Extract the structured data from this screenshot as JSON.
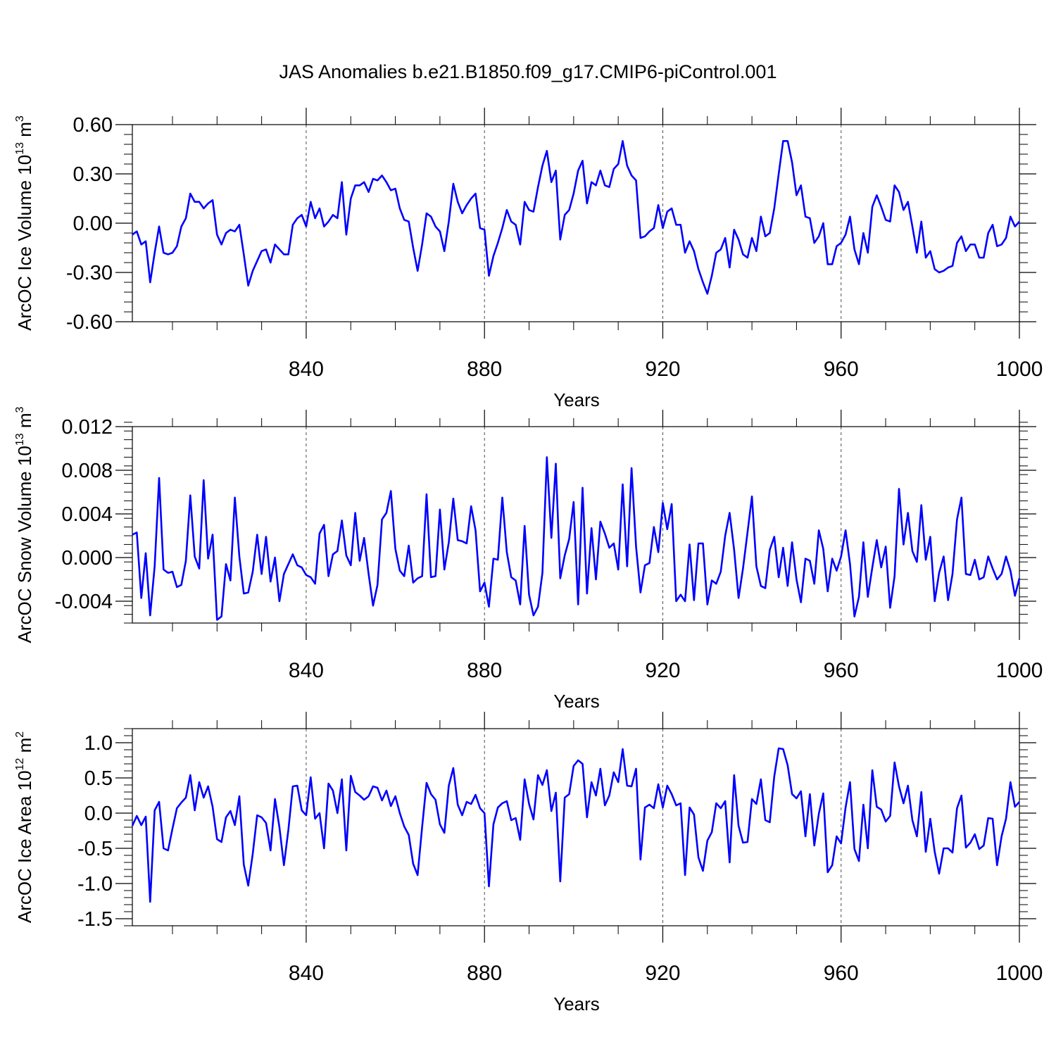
{
  "title": "JAS Anomalies b.e21.B1850.f09_g17.CMIP6-piControl.001",
  "colors": {
    "series": "#0000ff",
    "axes": "#000000",
    "grid": "#000000",
    "background": "#ffffff"
  },
  "chart_data": [
    {
      "type": "line",
      "ylabel_prefix": "ArcOC Ice Volume 10",
      "ylabel_sup1": "13",
      "ylabel_mid": " m",
      "ylabel_sup2": "3",
      "xlabel": "Years",
      "xlim": [
        801,
        1000
      ],
      "ylim": [
        -0.6,
        0.6
      ],
      "yticks": [
        -0.6,
        -0.3,
        0.0,
        0.3,
        0.6
      ],
      "ytick_labels": [
        "-0.60",
        "-0.30",
        "0.00",
        "0.30",
        "0.60"
      ],
      "yminor_step": 0.06,
      "xticks": [
        840,
        880,
        920,
        960,
        1000
      ],
      "xtick_labels": [
        "840",
        "880",
        "920",
        "960",
        "1000"
      ],
      "xminor": [
        810,
        820,
        830,
        850,
        860,
        870,
        890,
        900,
        910,
        930,
        940,
        950,
        970,
        980,
        990
      ],
      "x_start": 801,
      "values": [
        -0.07,
        -0.05,
        -0.13,
        -0.11,
        -0.36,
        -0.18,
        -0.02,
        -0.18,
        -0.19,
        -0.18,
        -0.14,
        -0.02,
        0.03,
        0.18,
        0.13,
        0.13,
        0.09,
        0.12,
        0.14,
        -0.07,
        -0.13,
        -0.06,
        -0.04,
        -0.05,
        -0.01,
        -0.19,
        -0.38,
        -0.29,
        -0.23,
        -0.17,
        -0.16,
        -0.24,
        -0.13,
        -0.16,
        -0.19,
        -0.19,
        -0.01,
        0.03,
        0.05,
        -0.02,
        0.13,
        0.03,
        0.09,
        -0.02,
        0.01,
        0.05,
        0.03,
        0.25,
        -0.07,
        0.15,
        0.23,
        0.23,
        0.25,
        0.19,
        0.27,
        0.26,
        0.29,
        0.25,
        0.2,
        0.21,
        0.09,
        0.02,
        0.01,
        -0.15,
        -0.29,
        -0.13,
        0.06,
        0.04,
        -0.02,
        -0.05,
        -0.17,
        0.01,
        0.24,
        0.13,
        0.06,
        0.11,
        0.15,
        0.18,
        -0.03,
        -0.04,
        -0.32,
        -0.2,
        -0.12,
        -0.03,
        0.08,
        0.01,
        -0.01,
        -0.13,
        0.13,
        0.08,
        0.07,
        0.22,
        0.35,
        0.44,
        0.25,
        0.32,
        -0.1,
        0.05,
        0.08,
        0.18,
        0.32,
        0.38,
        0.12,
        0.25,
        0.23,
        0.32,
        0.23,
        0.22,
        0.33,
        0.36,
        0.5,
        0.35,
        0.29,
        0.26,
        -0.09,
        -0.08,
        -0.05,
        -0.03,
        0.11,
        -0.03,
        0.07,
        0.09,
        -0.01,
        -0.01,
        -0.18,
        -0.11,
        -0.17,
        -0.28,
        -0.36,
        -0.43,
        -0.32,
        -0.18,
        -0.16,
        -0.09,
        -0.27,
        -0.04,
        -0.1,
        -0.19,
        -0.21,
        -0.09,
        -0.17,
        0.04,
        -0.08,
        -0.06,
        0.09,
        0.3,
        0.5,
        0.5,
        0.37,
        0.17,
        0.23,
        0.04,
        0.03,
        -0.12,
        -0.08,
        0.0,
        -0.25,
        -0.25,
        -0.14,
        -0.12,
        -0.07,
        0.04,
        -0.16,
        -0.25,
        -0.06,
        -0.18,
        0.1,
        0.17,
        0.1,
        0.02,
        0.01,
        0.23,
        0.19,
        0.08,
        0.13,
        -0.02,
        -0.18,
        0.01,
        -0.21,
        -0.17,
        -0.28,
        -0.3,
        -0.29,
        -0.27,
        -0.26,
        -0.12,
        -0.08,
        -0.17,
        -0.13,
        -0.13,
        -0.21,
        -0.21,
        -0.06,
        -0.01,
        -0.14,
        -0.13,
        -0.09,
        0.04,
        -0.02,
        0.01
      ]
    },
    {
      "type": "line",
      "ylabel_prefix": "ArcOC Snow Volume 10",
      "ylabel_sup1": "13",
      "ylabel_mid": " m",
      "ylabel_sup2": "3",
      "xlabel": "Years",
      "xlim": [
        801,
        1000
      ],
      "ylim": [
        -0.006,
        0.012
      ],
      "yticks": [
        -0.004,
        0.0,
        0.004,
        0.008,
        0.012
      ],
      "ytick_labels": [
        "-0.004",
        "0.000",
        "0.004",
        "0.008",
        "0.012"
      ],
      "yminor_step": 0.0008,
      "xticks": [
        840,
        880,
        920,
        960,
        1000
      ],
      "xtick_labels": [
        "840",
        "880",
        "920",
        "960",
        "1000"
      ],
      "xminor": [
        810,
        820,
        830,
        850,
        860,
        870,
        890,
        900,
        910,
        930,
        940,
        950,
        970,
        980,
        990
      ],
      "x_start": 801,
      "values": [
        0.0021,
        0.0023,
        -0.0037,
        0.0004,
        -0.0053,
        -0.0008,
        0.0073,
        -0.0011,
        -0.0014,
        -0.0013,
        -0.0027,
        -0.0025,
        -0.0003,
        0.0057,
        0.0001,
        -0.001,
        0.0071,
        -0.0001,
        0.0021,
        -0.0057,
        -0.0054,
        -0.0006,
        -0.0021,
        0.0055,
        0.0001,
        -0.0033,
        -0.0032,
        -0.0013,
        0.0021,
        -0.0015,
        0.0019,
        -0.0022,
        0.0,
        -0.004,
        -0.0015,
        -0.0006,
        0.0003,
        -0.0007,
        -0.0009,
        -0.0016,
        -0.0018,
        -0.0024,
        0.0022,
        0.003,
        -0.0017,
        0.0003,
        0.0006,
        0.0034,
        0.0002,
        -0.0007,
        0.0041,
        -0.0003,
        0.0018,
        -0.0015,
        -0.0044,
        -0.0025,
        0.0035,
        0.0041,
        0.0061,
        0.0008,
        -0.0012,
        -0.0017,
        0.0011,
        -0.0023,
        -0.0019,
        -0.0017,
        0.0058,
        -0.0018,
        -0.0017,
        0.0044,
        -0.0011,
        0.0014,
        0.0054,
        0.0016,
        0.0015,
        0.0013,
        0.0047,
        0.0025,
        -0.0031,
        -0.0023,
        -0.0045,
        -0.0001,
        -0.0002,
        0.0055,
        0.0005,
        -0.0018,
        -0.0021,
        -0.0043,
        0.0029,
        -0.0034,
        -0.0053,
        -0.0045,
        -0.0014,
        0.0092,
        0.0018,
        0.0086,
        -0.0019,
        0.0002,
        0.0017,
        0.0051,
        -0.0043,
        0.0064,
        -0.0033,
        0.0027,
        -0.002,
        0.0033,
        0.0022,
        0.0009,
        0.0013,
        -0.0011,
        0.0067,
        -0.0008,
        0.0082,
        0.001,
        -0.0032,
        -0.0007,
        -0.0005,
        0.0028,
        0.0005,
        0.005,
        0.0026,
        0.0049,
        -0.004,
        -0.0034,
        -0.004,
        0.0012,
        -0.0039,
        0.0013,
        0.0013,
        -0.0043,
        -0.0021,
        -0.0024,
        -0.0013,
        0.002,
        0.0041,
        0.0007,
        -0.0037,
        -0.001,
        0.0023,
        0.0056,
        -0.0008,
        -0.0026,
        -0.0028,
        0.0007,
        0.0019,
        -0.0018,
        0.0009,
        -0.0026,
        0.0014,
        -0.002,
        -0.0041,
        -0.0001,
        -0.0003,
        -0.0024,
        0.0025,
        0.0008,
        -0.0031,
        -0.0001,
        -0.0012,
        0.0001,
        0.0025,
        -0.0006,
        -0.0054,
        -0.0036,
        0.0014,
        -0.0036,
        -0.0009,
        0.0016,
        -0.0009,
        0.001,
        -0.0046,
        -0.0017,
        0.0063,
        0.0012,
        0.0041,
        0.0006,
        -0.0004,
        0.0048,
        -0.0002,
        0.0019,
        -0.004,
        -0.0014,
        0.0001,
        -0.0039,
        -0.0015,
        0.0035,
        0.0055,
        -0.0015,
        -0.0016,
        -0.0002,
        -0.002,
        -0.0018,
        0.0001,
        -0.001,
        -0.002,
        -0.0015,
        0.0001,
        -0.0012,
        -0.0035,
        -0.0019
      ]
    },
    {
      "type": "line",
      "ylabel_prefix": "ArcOC Ice Area 10",
      "ylabel_sup1": "12",
      "ylabel_mid": " m",
      "ylabel_sup2": "2",
      "xlabel": "Years",
      "xlim": [
        801,
        1000
      ],
      "ylim": [
        -1.6,
        1.2
      ],
      "yticks": [
        -1.5,
        -1.0,
        -0.5,
        0.0,
        0.5,
        1.0
      ],
      "ytick_labels": [
        "-1.5",
        "-1.0",
        "-0.5",
        "0.0",
        "0.5",
        "1.0"
      ],
      "yminor_step": 0.1,
      "xticks": [
        840,
        880,
        920,
        960,
        1000
      ],
      "xtick_labels": [
        "840",
        "880",
        "920",
        "960",
        "1000"
      ],
      "xminor": [
        810,
        820,
        830,
        850,
        860,
        870,
        890,
        900,
        910,
        930,
        940,
        950,
        970,
        980,
        990
      ],
      "x_start": 801,
      "values": [
        -0.18,
        -0.04,
        -0.17,
        -0.05,
        -1.26,
        0.04,
        0.16,
        -0.5,
        -0.53,
        -0.22,
        0.07,
        0.15,
        0.22,
        0.54,
        0.04,
        0.44,
        0.22,
        0.38,
        0.09,
        -0.37,
        -0.41,
        -0.06,
        0.03,
        -0.17,
        0.24,
        -0.73,
        -1.03,
        -0.58,
        -0.03,
        -0.06,
        -0.14,
        -0.53,
        0.2,
        -0.2,
        -0.74,
        -0.24,
        0.38,
        0.39,
        0.04,
        -0.03,
        0.51,
        -0.08,
        0.0,
        -0.5,
        0.42,
        0.32,
        0.0,
        0.48,
        -0.53,
        0.53,
        0.3,
        0.25,
        0.19,
        0.24,
        0.38,
        0.36,
        0.18,
        0.32,
        0.1,
        0.24,
        0.0,
        -0.19,
        -0.31,
        -0.72,
        -0.88,
        -0.2,
        0.43,
        0.27,
        0.19,
        -0.16,
        -0.28,
        0.39,
        0.64,
        0.12,
        -0.03,
        0.16,
        0.13,
        0.26,
        0.07,
        0.0,
        -1.04,
        -0.16,
        0.08,
        0.14,
        0.17,
        -0.1,
        -0.07,
        -0.38,
        0.48,
        0.13,
        -0.09,
        0.54,
        0.4,
        0.61,
        0.03,
        0.29,
        -0.97,
        0.22,
        0.27,
        0.67,
        0.75,
        0.7,
        -0.06,
        0.44,
        0.25,
        0.63,
        0.11,
        0.25,
        0.58,
        0.44,
        0.91,
        0.39,
        0.38,
        0.63,
        -0.66,
        0.08,
        0.12,
        0.07,
        0.41,
        0.08,
        0.39,
        0.27,
        0.11,
        0.14,
        -0.88,
        0.08,
        -0.02,
        -0.63,
        -0.82,
        -0.39,
        -0.27,
        0.14,
        0.07,
        0.17,
        -0.7,
        0.54,
        -0.18,
        -0.42,
        -0.41,
        0.2,
        0.13,
        0.48,
        -0.1,
        -0.13,
        0.52,
        0.92,
        0.91,
        0.68,
        0.27,
        0.21,
        0.31,
        -0.33,
        0.27,
        -0.46,
        -0.01,
        0.28,
        -0.84,
        -0.74,
        -0.33,
        -0.43,
        0.08,
        0.44,
        -0.51,
        -0.68,
        0.12,
        -0.5,
        0.61,
        0.09,
        0.05,
        -0.12,
        -0.04,
        0.72,
        0.38,
        0.14,
        0.39,
        -0.1,
        -0.33,
        0.3,
        -0.55,
        -0.08,
        -0.55,
        -0.86,
        -0.5,
        -0.5,
        -0.56,
        0.07,
        0.25,
        -0.49,
        -0.42,
        -0.3,
        -0.51,
        -0.46,
        -0.07,
        -0.08,
        -0.74,
        -0.33,
        -0.08,
        0.44,
        0.09,
        0.16
      ]
    }
  ]
}
